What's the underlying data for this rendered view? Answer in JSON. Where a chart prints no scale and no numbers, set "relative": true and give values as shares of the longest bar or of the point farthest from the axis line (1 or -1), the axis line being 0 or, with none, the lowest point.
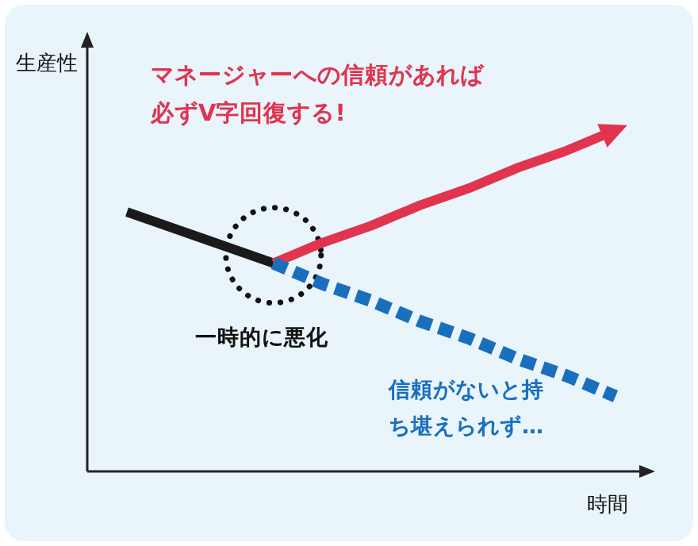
{
  "chart_data": {
    "type": "line",
    "relative": true,
    "xlabel": "時間",
    "ylabel": "生産性",
    "grid": false,
    "categories": [
      null,
      null,
      null,
      null,
      null,
      null,
      null,
      null,
      null,
      null,
      null
    ],
    "series": [
      {
        "color": "#1a1a1a",
        "values": [
          0.76,
          0.71,
          0.66,
          0.61,
          null,
          null,
          null,
          null,
          null,
          null,
          null
        ],
        "line_style": "solid"
      },
      {
        "color": "#e0344f",
        "values": [
          null,
          null,
          null,
          0.61,
          0.67,
          0.72,
          0.78,
          0.83,
          0.89,
          0.94,
          1
        ],
        "line_style": "solid"
      },
      {
        "color": "#1a6fbd",
        "values": [
          null,
          null,
          null,
          0.61,
          0.55,
          0.5,
          0.44,
          0.39,
          0.33,
          0.28,
          0.22
        ],
        "line_style": "dashed"
      }
    ],
    "annotations": [
      "マネージャーへの信頼があれば必ずV字回復する!",
      "一時的に悪化",
      "信頼がないと持ち堪えられず…"
    ]
  }
}
